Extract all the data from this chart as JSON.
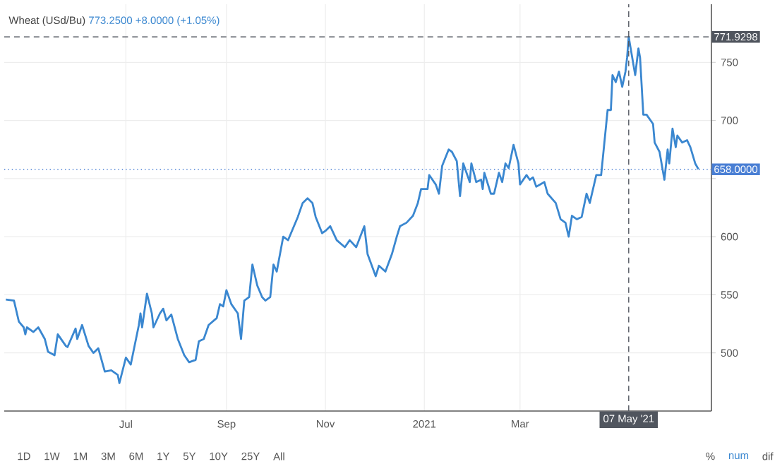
{
  "chart_data": {
    "type": "line",
    "title": "Wheat (USd/Bu)",
    "subtitle": "773.2500 +8.0000 (+1.05%)",
    "x": [
      "2020-04-18",
      "2020-04-23",
      "2020-04-26",
      "2020-04-29",
      "2020-04-30",
      "2020-05-01",
      "2020-05-05",
      "2020-05-08",
      "2020-05-12",
      "2020-05-14",
      "2020-05-18",
      "2020-05-20",
      "2020-05-25",
      "2020-05-26",
      "2020-05-31",
      "2020-06-01",
      "2020-06-04",
      "2020-06-08",
      "2020-06-11",
      "2020-06-14",
      "2020-06-18",
      "2020-06-22",
      "2020-06-26",
      "2020-06-27",
      "2020-07-01",
      "2020-07-04",
      "2020-07-09",
      "2020-07-10",
      "2020-07-11",
      "2020-07-14",
      "2020-07-17",
      "2020-07-18",
      "2020-07-22",
      "2020-07-24",
      "2020-07-26",
      "2020-07-29",
      "2020-08-02",
      "2020-08-06",
      "2020-08-09",
      "2020-08-13",
      "2020-08-15",
      "2020-08-18",
      "2020-08-21",
      "2020-08-26",
      "2020-08-28",
      "2020-08-30",
      "2020-09-01",
      "2020-09-04",
      "2020-09-08",
      "2020-09-10",
      "2020-09-12",
      "2020-09-15",
      "2020-09-17",
      "2020-09-20",
      "2020-09-23",
      "2020-09-25",
      "2020-09-28",
      "2020-09-30",
      "2020-10-02",
      "2020-10-06",
      "2020-10-09",
      "2020-10-15",
      "2020-10-18",
      "2020-10-21",
      "2020-10-24",
      "2020-10-26",
      "2020-10-30",
      "2020-11-01",
      "2020-11-04",
      "2020-11-08",
      "2020-11-13",
      "2020-11-16",
      "2020-11-20",
      "2020-11-25",
      "2020-11-27",
      "2020-12-02",
      "2020-12-04",
      "2020-12-08",
      "2020-12-12",
      "2020-12-15",
      "2020-12-17",
      "2020-12-21",
      "2020-12-25",
      "2020-12-28",
      "2020-12-30",
      "2021-01-03",
      "2021-01-04",
      "2021-01-08",
      "2021-01-10",
      "2021-01-12",
      "2021-01-16",
      "2021-01-18",
      "2021-01-21",
      "2021-01-23",
      "2021-01-25",
      "2021-01-29",
      "2021-01-30",
      "2021-02-02",
      "2021-02-05",
      "2021-02-06",
      "2021-02-07",
      "2021-02-11",
      "2021-02-13",
      "2021-02-16",
      "2021-02-18",
      "2021-02-20",
      "2021-02-22",
      "2021-02-25",
      "2021-02-28",
      "2021-03-01",
      "2021-03-05",
      "2021-03-07",
      "2021-03-09",
      "2021-03-11",
      "2021-03-16",
      "2021-03-18",
      "2021-03-23",
      "2021-03-26",
      "2021-03-29",
      "2021-03-31",
      "2021-04-02",
      "2021-04-05",
      "2021-04-08",
      "2021-04-11",
      "2021-04-13",
      "2021-04-17",
      "2021-04-20",
      "2021-04-22",
      "2021-04-24",
      "2021-04-26",
      "2021-04-27",
      "2021-04-29",
      "2021-05-01",
      "2021-05-03",
      "2021-05-05",
      "2021-05-06",
      "2021-05-07",
      "2021-05-11",
      "2021-05-13",
      "2021-05-14",
      "2021-05-16",
      "2021-05-18",
      "2021-05-22",
      "2021-05-23",
      "2021-05-26",
      "2021-05-29",
      "2021-05-31",
      "2021-06-01",
      "2021-06-03",
      "2021-06-05",
      "2021-06-06",
      "2021-06-09",
      "2021-06-12",
      "2021-06-14",
      "2021-06-17",
      "2021-06-19"
    ],
    "values": [
      546,
      545,
      527,
      522,
      516,
      522,
      518,
      522,
      512,
      501,
      498,
      516,
      506,
      505,
      521,
      512,
      524,
      506,
      500,
      504,
      484,
      485,
      481,
      474,
      496,
      490,
      524,
      534,
      522,
      551,
      534,
      522,
      534,
      538,
      528,
      533,
      512,
      498,
      492,
      494,
      510,
      512,
      524,
      530,
      542,
      540,
      554,
      542,
      534,
      512,
      545,
      548,
      576,
      558,
      548,
      545,
      548,
      576,
      570,
      600,
      597,
      617,
      629,
      633,
      629,
      617,
      603,
      605,
      609,
      597,
      591,
      597,
      591,
      609,
      585,
      566,
      575,
      570,
      585,
      600,
      609,
      612,
      618,
      629,
      641,
      641,
      653,
      645,
      637,
      661,
      675,
      673,
      665,
      635,
      663,
      647,
      663,
      647,
      649,
      641,
      655,
      637,
      637,
      655,
      647,
      663,
      659,
      679,
      663,
      645,
      653,
      649,
      651,
      643,
      647,
      637,
      629,
      615,
      612,
      600,
      618,
      615,
      617,
      637,
      629,
      653,
      653,
      681,
      709,
      709,
      739,
      733,
      742,
      729,
      742,
      754,
      771.9298,
      739,
      762,
      754,
      705,
      705,
      697,
      681,
      673,
      649,
      675,
      663,
      693,
      677,
      687,
      681,
      683,
      677,
      663,
      658
    ],
    "color": "#3a87d0",
    "xlim": [
      "2020-04-17",
      "2021-06-27"
    ],
    "xticks": [
      {
        "value": "2020-07-01",
        "label": "Jul"
      },
      {
        "value": "2020-09-01",
        "label": "Sep"
      },
      {
        "value": "2020-11-01",
        "label": "Nov"
      },
      {
        "value": "2021-01-01",
        "label": "2021"
      },
      {
        "value": "2021-03-01",
        "label": "Mar"
      }
    ],
    "ylim": [
      450,
      800
    ],
    "yticks": [
      500,
      550,
      600,
      {
        "value": 650,
        "label": null
      },
      700,
      750
    ],
    "grid": true,
    "ref_lines": [
      {
        "axis": "y",
        "value": 771.9298,
        "label": "771.9298",
        "color": "#50555e",
        "line_style": "dashed"
      },
      {
        "axis": "y",
        "value": 658,
        "label": "658.0000",
        "color": "#4a7fd4",
        "line_style": "dotted"
      },
      {
        "axis": "x",
        "value": "2021-05-07",
        "label": "07 May '21",
        "color": "#50555e",
        "line_style": "dashed"
      }
    ],
    "annotations": [
      "1D",
      "1W",
      "1M",
      "3M",
      "6M",
      "1Y",
      "5Y",
      "10Y",
      "25Y",
      "All",
      "%",
      "num",
      "dif"
    ]
  }
}
